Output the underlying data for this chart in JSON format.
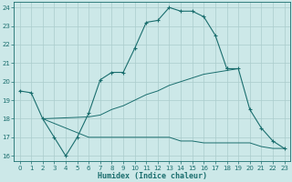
{
  "xlabel": "Humidex (Indice chaleur)",
  "xlim": [
    -0.5,
    23.5
  ],
  "ylim": [
    15.7,
    24.3
  ],
  "yticks": [
    16,
    17,
    18,
    19,
    20,
    21,
    22,
    23,
    24
  ],
  "xticks": [
    0,
    1,
    2,
    3,
    4,
    5,
    6,
    7,
    8,
    9,
    10,
    11,
    12,
    13,
    14,
    15,
    16,
    17,
    18,
    19,
    20,
    21,
    22,
    23
  ],
  "bg_color": "#cce8e8",
  "grid_color": "#aacccc",
  "line_color": "#1a6e6e",
  "line1_x": [
    0,
    1,
    2,
    3,
    4,
    5,
    6,
    7,
    8,
    9,
    10,
    11,
    12,
    13,
    14,
    15,
    16,
    17,
    18
  ],
  "line1_y": [
    19.5,
    19.4,
    18.0,
    17.0,
    16.0,
    17.0,
    18.3,
    20.1,
    20.5,
    20.5,
    21.8,
    23.2,
    23.3,
    24.0,
    23.8,
    23.8,
    23.5,
    22.5,
    20.7
  ],
  "line2_x": [
    18,
    19,
    20,
    21,
    22,
    23
  ],
  "line2_y": [
    20.7,
    20.7,
    18.5,
    17.5,
    16.8,
    16.4
  ],
  "line3_x": [
    2,
    6,
    7,
    8,
    9,
    10,
    11,
    12,
    13,
    14,
    15,
    16,
    17,
    18,
    19
  ],
  "line3_y": [
    18.0,
    18.1,
    18.2,
    18.5,
    18.7,
    19.0,
    19.3,
    19.5,
    19.8,
    20.0,
    20.2,
    20.4,
    20.5,
    20.6,
    20.7
  ],
  "line4_x": [
    2,
    6,
    7,
    8,
    9,
    10,
    11,
    12,
    13,
    14,
    15,
    16,
    17,
    18,
    19,
    20,
    21,
    22,
    23
  ],
  "line4_y": [
    18.0,
    17.0,
    17.0,
    17.0,
    17.0,
    17.0,
    17.0,
    17.0,
    17.0,
    16.8,
    16.8,
    16.7,
    16.7,
    16.7,
    16.7,
    16.7,
    16.5,
    16.4,
    16.4
  ]
}
